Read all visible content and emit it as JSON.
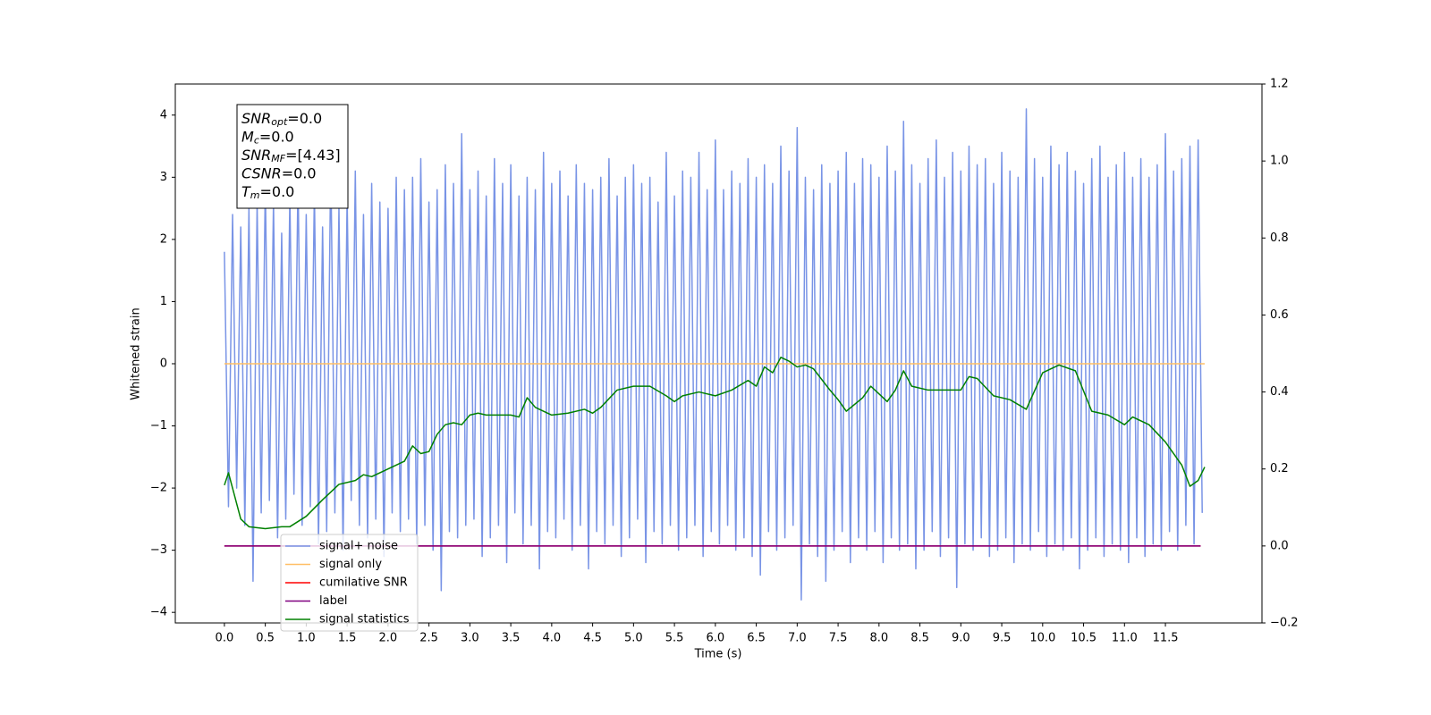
{
  "chart_data": {
    "type": "line",
    "xlabel": "Time (s)",
    "ylabel": "Whitened strain",
    "xlim": [
      -0.6,
      12.68
    ],
    "ylim": [
      -4.17,
      4.5
    ],
    "y2lim": [
      -0.2,
      1.2
    ],
    "xticks": [
      {
        "value": 0,
        "label": "0.0"
      },
      0.5,
      {
        "value": 1,
        "label": "1.0"
      },
      1.5,
      {
        "value": 2,
        "label": "2.0"
      },
      2.5,
      {
        "value": 3,
        "label": "3.0"
      },
      3.5,
      {
        "value": 4,
        "label": "4.0"
      },
      4.5,
      {
        "value": 5,
        "label": "5.0"
      },
      5.5,
      {
        "value": 6,
        "label": "6.0"
      },
      6.5,
      {
        "value": 7,
        "label": "7.0"
      },
      7.5,
      {
        "value": 8,
        "label": "8.0"
      },
      8.5,
      {
        "value": 9,
        "label": "9.0"
      },
      9.5,
      {
        "value": 10,
        "label": "10.0"
      },
      10.5,
      {
        "value": 11,
        "label": "11.0"
      },
      11.5
    ],
    "yticks": [
      {
        "value": -4,
        "label": "−4"
      },
      {
        "value": -3,
        "label": "−3"
      },
      {
        "value": -2,
        "label": "−2"
      },
      {
        "value": -1,
        "label": "−1"
      },
      0,
      1,
      2,
      3,
      4
    ],
    "y2ticks": [
      {
        "value": -0.2,
        "label": "−0.2"
      },
      {
        "value": 0,
        "label": "0.0"
      },
      0.2,
      0.4,
      0.6,
      0.8,
      {
        "value": 1,
        "label": "1.0"
      },
      1.2
    ],
    "grid": false,
    "legend_loc": "lower left",
    "textbox": [
      {
        "symbol": "SNR",
        "sub": "opt",
        "text": "=0.0"
      },
      {
        "symbol": "M",
        "sub": "c",
        "text": "=0.0"
      },
      {
        "symbol": "SNR",
        "sub": "MF",
        "text": "=[4.43]"
      },
      {
        "symbol": "CSNR",
        "text": "=0.0"
      },
      {
        "symbol": "T",
        "sub": "m",
        "text": "=0.0"
      }
    ],
    "series": [
      {
        "name": "signal+ noise",
        "color": "#7994e6",
        "x": [
          0,
          0.05,
          0.1,
          0.15,
          0.2,
          0.25,
          0.3,
          0.35,
          0.4,
          0.45,
          0.5,
          0.55,
          0.6,
          0.65,
          0.7,
          0.75,
          0.8,
          0.85,
          0.9,
          0.95,
          1,
          1.05,
          1.1,
          1.15,
          1.2,
          1.25,
          1.3,
          1.35,
          1.4,
          1.45,
          1.5,
          1.55,
          1.6,
          1.65,
          1.7,
          1.75,
          1.8,
          1.85,
          1.9,
          1.95,
          2,
          2.05,
          2.1,
          2.15,
          2.2,
          2.25,
          2.3,
          2.35,
          2.4,
          2.45,
          2.5,
          2.55,
          2.6,
          2.65,
          2.7,
          2.75,
          2.8,
          2.85,
          2.9,
          2.95,
          3,
          3.05,
          3.1,
          3.15,
          3.2,
          3.25,
          3.3,
          3.35,
          3.4,
          3.45,
          3.5,
          3.55,
          3.6,
          3.65,
          3.7,
          3.75,
          3.8,
          3.85,
          3.9,
          3.95,
          4,
          4.05,
          4.1,
          4.15,
          4.2,
          4.25,
          4.3,
          4.35,
          4.4,
          4.45,
          4.5,
          4.55,
          4.6,
          4.65,
          4.7,
          4.75,
          4.8,
          4.85,
          4.9,
          4.95,
          5,
          5.05,
          5.1,
          5.15,
          5.2,
          5.25,
          5.3,
          5.35,
          5.4,
          5.45,
          5.5,
          5.55,
          5.6,
          5.65,
          5.7,
          5.75,
          5.8,
          5.85,
          5.9,
          5.95,
          6,
          6.05,
          6.1,
          6.15,
          6.2,
          6.25,
          6.3,
          6.35,
          6.4,
          6.45,
          6.5,
          6.55,
          6.6,
          6.65,
          6.7,
          6.75,
          6.8,
          6.85,
          6.9,
          6.95,
          7,
          7.05,
          7.1,
          7.15,
          7.2,
          7.25,
          7.3,
          7.35,
          7.4,
          7.45,
          7.5,
          7.55,
          7.6,
          7.65,
          7.7,
          7.75,
          7.8,
          7.85,
          7.9,
          7.95,
          8,
          8.05,
          8.1,
          8.15,
          8.2,
          8.25,
          8.3,
          8.35,
          8.4,
          8.45,
          8.5,
          8.55,
          8.6,
          8.65,
          8.7,
          8.75,
          8.8,
          8.85,
          8.9,
          8.95,
          9,
          9.05,
          9.1,
          9.15,
          9.2,
          9.25,
          9.3,
          9.35,
          9.4,
          9.45,
          9.5,
          9.55,
          9.6,
          9.65,
          9.7,
          9.75,
          9.8,
          9.85,
          9.9,
          9.95,
          10,
          10.05,
          10.1,
          10.15,
          10.2,
          10.25,
          10.3,
          10.35,
          10.4,
          10.45,
          10.5,
          10.55,
          10.6,
          10.65,
          10.7,
          10.75,
          10.8,
          10.85,
          10.9,
          10.95,
          11,
          11.05,
          11.1,
          11.15,
          11.2,
          11.25,
          11.3,
          11.35,
          11.4,
          11.45,
          11.5,
          11.55,
          11.6,
          11.65,
          11.7,
          11.75,
          11.8,
          11.85,
          11.9,
          11.95
        ],
        "values": [
          1.8,
          -2.3,
          2.4,
          -2.0,
          2.2,
          -2.6,
          2.5,
          -3.5,
          2.6,
          -2.4,
          2.9,
          -2.2,
          2.6,
          -2.8,
          2.1,
          -2.5,
          2.7,
          -2.1,
          3.0,
          -2.6,
          2.4,
          -2.3,
          2.8,
          -2.9,
          2.2,
          -2.7,
          3.3,
          -2.4,
          2.5,
          -3.0,
          2.7,
          -2.2,
          3.1,
          -2.6,
          2.4,
          -2.8,
          2.9,
          -2.5,
          2.6,
          -3.1,
          2.5,
          -2.4,
          3.0,
          -2.7,
          2.8,
          -2.5,
          3.0,
          -2.9,
          3.3,
          -2.6,
          2.6,
          -3.0,
          2.8,
          -3.65,
          3.2,
          -2.7,
          2.9,
          -2.8,
          3.7,
          -2.6,
          2.8,
          -2.5,
          3.1,
          -3.1,
          2.7,
          -2.8,
          3.3,
          -2.6,
          2.9,
          -3.2,
          3.2,
          -2.4,
          2.7,
          -2.9,
          3.0,
          -2.6,
          2.8,
          -3.3,
          3.4,
          -2.7,
          2.9,
          -2.8,
          3.1,
          -2.5,
          2.7,
          -3.0,
          3.2,
          -2.6,
          2.9,
          -3.3,
          2.8,
          -2.7,
          3.0,
          -2.9,
          3.3,
          -2.6,
          2.7,
          -3.1,
          3.0,
          -2.8,
          3.2,
          -2.5,
          2.9,
          -3.2,
          3.0,
          -2.7,
          2.6,
          -2.9,
          3.4,
          -2.6,
          2.7,
          -3.0,
          3.1,
          -2.8,
          3.0,
          -2.6,
          3.4,
          -3.1,
          2.8,
          -2.7,
          3.6,
          -2.9,
          2.8,
          -2.6,
          3.1,
          -3.0,
          2.9,
          -2.8,
          3.3,
          -3.1,
          3.0,
          -3.4,
          3.2,
          -2.7,
          2.9,
          -3.0,
          3.5,
          -2.8,
          3.1,
          -2.6,
          3.8,
          -3.8,
          3.0,
          -2.9,
          2.8,
          -3.1,
          3.2,
          -3.5,
          2.9,
          -3.0,
          3.1,
          -2.7,
          3.4,
          -3.2,
          2.9,
          -2.8,
          3.3,
          -3.0,
          3.2,
          -2.7,
          3.0,
          -3.2,
          3.5,
          -2.8,
          3.1,
          -3.0,
          3.9,
          -2.9,
          3.2,
          -3.3,
          2.9,
          -3.0,
          3.3,
          -2.7,
          3.6,
          -3.1,
          3.0,
          -2.8,
          3.4,
          -3.6,
          3.1,
          -2.9,
          3.5,
          -3.0,
          3.2,
          -2.8,
          3.3,
          -3.1,
          2.9,
          -3.0,
          3.4,
          -2.8,
          3.1,
          -3.2,
          3.0,
          -2.9,
          4.1,
          -3.0,
          3.3,
          -2.7,
          3.0,
          -3.1,
          3.5,
          -2.9,
          3.2,
          -3.0,
          3.4,
          -2.8,
          3.1,
          -3.3,
          2.9,
          -3.0,
          3.3,
          -2.8,
          3.5,
          -3.1,
          3.0,
          -2.9,
          3.2,
          -3.0,
          3.4,
          -3.2,
          3.0,
          -2.8,
          3.3,
          -3.1,
          3.0,
          -2.9,
          3.2,
          -3.0,
          3.7,
          -2.7,
          3.1,
          -3.0,
          3.3,
          -2.6,
          3.5,
          -2.9,
          3.6,
          -2.4
        ]
      },
      {
        "name": "signal only",
        "color": "#ffbf66",
        "x": [
          0,
          11.98
        ],
        "values": [
          0,
          0
        ]
      },
      {
        "name": "cumilative SNR",
        "color": "#ff0000",
        "axis": "y2",
        "x": [
          0,
          11.93
        ],
        "values": [
          0,
          0
        ]
      },
      {
        "name": "label",
        "color": "#800080",
        "axis": "y2",
        "x": [
          0,
          11.93
        ],
        "values": [
          0,
          0
        ]
      },
      {
        "name": "signal statistics",
        "color": "#008000",
        "axis": "y2",
        "x": [
          0,
          0.05,
          0.2,
          0.3,
          0.5,
          0.7,
          0.8,
          1.0,
          1.2,
          1.4,
          1.6,
          1.7,
          1.8,
          2.0,
          2.2,
          2.3,
          2.4,
          2.5,
          2.6,
          2.7,
          2.8,
          2.9,
          3.0,
          3.1,
          3.2,
          3.4,
          3.5,
          3.6,
          3.7,
          3.8,
          4.0,
          4.2,
          4.4,
          4.5,
          4.6,
          4.8,
          5.0,
          5.2,
          5.4,
          5.5,
          5.6,
          5.8,
          6.0,
          6.2,
          6.4,
          6.5,
          6.6,
          6.7,
          6.8,
          6.9,
          7.0,
          7.1,
          7.2,
          7.4,
          7.5,
          7.6,
          7.8,
          7.9,
          8.0,
          8.1,
          8.2,
          8.3,
          8.4,
          8.6,
          8.8,
          9.0,
          9.1,
          9.2,
          9.4,
          9.6,
          9.8,
          10.0,
          10.1,
          10.2,
          10.4,
          10.6,
          10.8,
          11.0,
          11.1,
          11.3,
          11.5,
          11.7,
          11.8,
          11.9,
          11.98
        ],
        "values": [
          0.158,
          0.19,
          0.07,
          0.05,
          0.045,
          0.05,
          0.05,
          0.077,
          0.12,
          0.16,
          0.17,
          0.185,
          0.18,
          0.2,
          0.22,
          0.26,
          0.24,
          0.245,
          0.29,
          0.315,
          0.32,
          0.315,
          0.34,
          0.345,
          0.34,
          0.34,
          0.34,
          0.335,
          0.385,
          0.36,
          0.34,
          0.345,
          0.355,
          0.345,
          0.36,
          0.405,
          0.415,
          0.415,
          0.39,
          0.375,
          0.39,
          0.4,
          0.39,
          0.405,
          0.43,
          0.415,
          0.465,
          0.45,
          0.49,
          0.48,
          0.465,
          0.47,
          0.46,
          0.405,
          0.38,
          0.35,
          0.385,
          0.415,
          0.395,
          0.375,
          0.405,
          0.455,
          0.415,
          0.405,
          0.405,
          0.405,
          0.44,
          0.435,
          0.39,
          0.38,
          0.355,
          0.45,
          0.46,
          0.47,
          0.455,
          0.35,
          0.34,
          0.315,
          0.335,
          0.315,
          0.27,
          0.21,
          0.155,
          0.17,
          0.205
        ]
      }
    ]
  }
}
